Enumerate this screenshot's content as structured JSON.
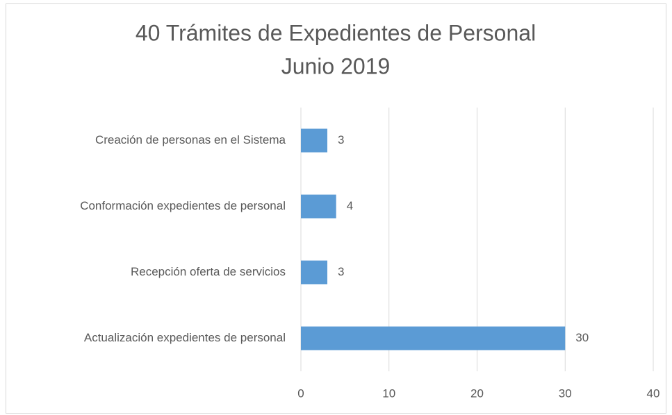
{
  "chart_data": {
    "type": "bar",
    "orientation": "horizontal",
    "title": "40 Trámites de Expedientes de Personal",
    "subtitle": "Junio 2019",
    "categories": [
      "Creación de personas en el Sistema",
      "Conformación expedientes de personal",
      "Recepción oferta de servicios",
      "Actualización expedientes de personal"
    ],
    "values": [
      3,
      4,
      3,
      30
    ],
    "color": "#5b9bd5",
    "xlim": [
      0,
      40
    ],
    "xticks": [
      0,
      10,
      20,
      30,
      40
    ],
    "grid": true
  }
}
